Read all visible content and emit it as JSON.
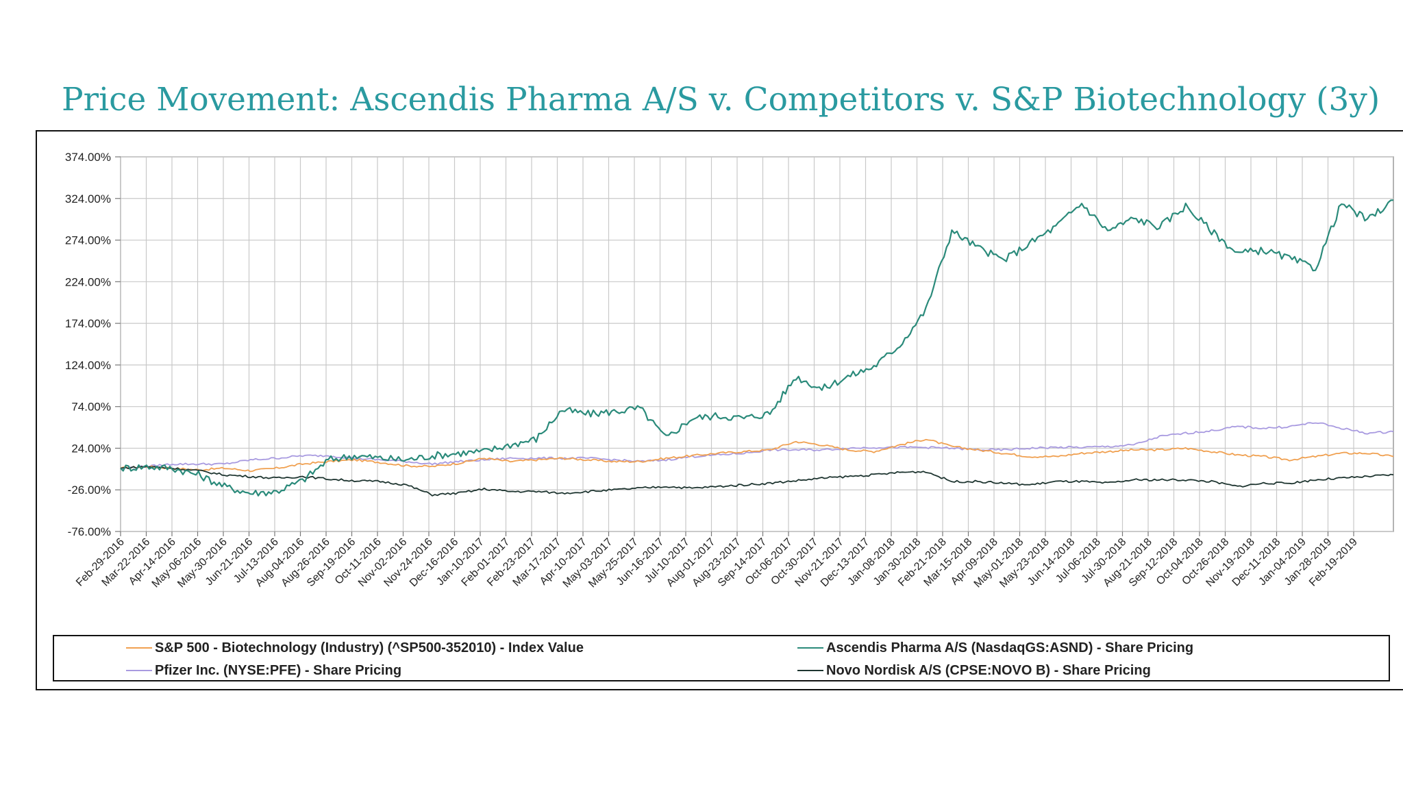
{
  "slide": {
    "title": "Price Movement: Ascendis Pharma A/S v. Competitors v. S&P Biotechnology (3y)"
  },
  "chart_data": {
    "type": "line",
    "title": "",
    "xlabel": "",
    "ylabel": "",
    "ylim": [
      -76,
      374
    ],
    "y_ticks": [
      "-76.00%",
      "-26.00%",
      "24.00%",
      "74.00%",
      "124.00%",
      "174.00%",
      "224.00%",
      "274.00%",
      "324.00%",
      "374.00%"
    ],
    "y_tick_values": [
      -76,
      -26,
      24,
      74,
      124,
      174,
      224,
      274,
      324,
      374
    ],
    "x_ticks": [
      "Feb-29-2016",
      "Mar-22-2016",
      "Apr-14-2016",
      "May-06-2016",
      "May-30-2016",
      "Jun-21-2016",
      "Jul-13-2016",
      "Aug-04-2016",
      "Aug-26-2016",
      "Sep-19-2016",
      "Oct-11-2016",
      "Nov-02-2016",
      "Nov-24-2016",
      "Dec-16-2016",
      "Jan-10-2017",
      "Feb-01-2017",
      "Feb-23-2017",
      "Mar-17-2017",
      "Apr-10-2017",
      "May-03-2017",
      "May-25-2017",
      "Jun-16-2017",
      "Jul-10-2017",
      "Aug-01-2017",
      "Aug-23-2017",
      "Sep-14-2017",
      "Oct-06-2017",
      "Oct-30-2017",
      "Nov-21-2017",
      "Dec-13-2017",
      "Jan-08-2018",
      "Jan-30-2018",
      "Feb-21-2018",
      "Mar-15-2018",
      "Apr-09-2018",
      "May-01-2018",
      "May-23-2018",
      "Jun-14-2018",
      "Jul-06-2018",
      "Jul-30-2018",
      "Aug-21-2018",
      "Sep-12-2018",
      "Oct-04-2018",
      "Oct-26-2018",
      "Nov-19-2018",
      "Dec-11-2018",
      "Jan-04-2019",
      "Jan-28-2019",
      "Feb-19-2019"
    ],
    "grid": true,
    "legend_position": "bottom",
    "series": [
      {
        "name": "S&P 500 - Biotechnology (Industry) (^SP500-352010) - Index Value",
        "color": "#f0a050",
        "values": [
          0,
          2,
          0,
          -2,
          0,
          -3,
          0,
          5,
          8,
          10,
          7,
          3,
          2,
          6,
          12,
          8,
          10,
          12,
          10,
          8,
          8,
          12,
          15,
          18,
          20,
          22,
          32,
          28,
          22,
          20,
          28,
          35,
          26,
          22,
          18,
          14,
          14,
          18,
          20,
          22,
          22,
          24,
          20,
          16,
          14,
          10,
          14,
          18,
          18,
          14
        ]
      },
      {
        "name": "Ascendis Pharma A/S (NasdaqGS:ASND) - Share Pricing",
        "color": "#2a8a7a",
        "values": [
          0,
          2,
          0,
          -8,
          -22,
          -30,
          -28,
          -15,
          10,
          15,
          12,
          10,
          15,
          18,
          20,
          28,
          35,
          70,
          65,
          68,
          72,
          36,
          60,
          63,
          60,
          66,
          110,
          95,
          110,
          122,
          148,
          190,
          285,
          265,
          250,
          270,
          290,
          318,
          285,
          300,
          290,
          315,
          285,
          258,
          262,
          252,
          240,
          318,
          298,
          322
        ]
      },
      {
        "name": "Pfizer Inc. (NYSE:PFE) - Share Pricing",
        "color": "#a89ae0",
        "values": [
          0,
          2,
          5,
          5,
          5,
          10,
          12,
          15,
          15,
          12,
          10,
          8,
          5,
          8,
          10,
          12,
          12,
          12,
          12,
          10,
          8,
          10,
          14,
          16,
          18,
          22,
          22,
          22,
          24,
          25,
          25,
          25,
          24,
          22,
          22,
          24,
          25,
          25,
          26,
          28,
          38,
          42,
          45,
          50,
          48,
          50,
          55,
          48,
          42,
          44
        ]
      },
      {
        "name": "Novo Nordisk A/S (CPSE:NOVO B) - Share Pricing",
        "color": "#1e3530",
        "values": [
          0,
          2,
          0,
          -3,
          -8,
          -10,
          -12,
          -10,
          -13,
          -15,
          -16,
          -20,
          -32,
          -30,
          -25,
          -28,
          -28,
          -30,
          -28,
          -26,
          -24,
          -22,
          -24,
          -22,
          -20,
          -18,
          -15,
          -12,
          -10,
          -8,
          -5,
          -4,
          -16,
          -16,
          -18,
          -20,
          -16,
          -16,
          -18,
          -14,
          -14,
          -14,
          -16,
          -22,
          -18,
          -18,
          -14,
          -12,
          -10,
          -8
        ]
      }
    ]
  }
}
